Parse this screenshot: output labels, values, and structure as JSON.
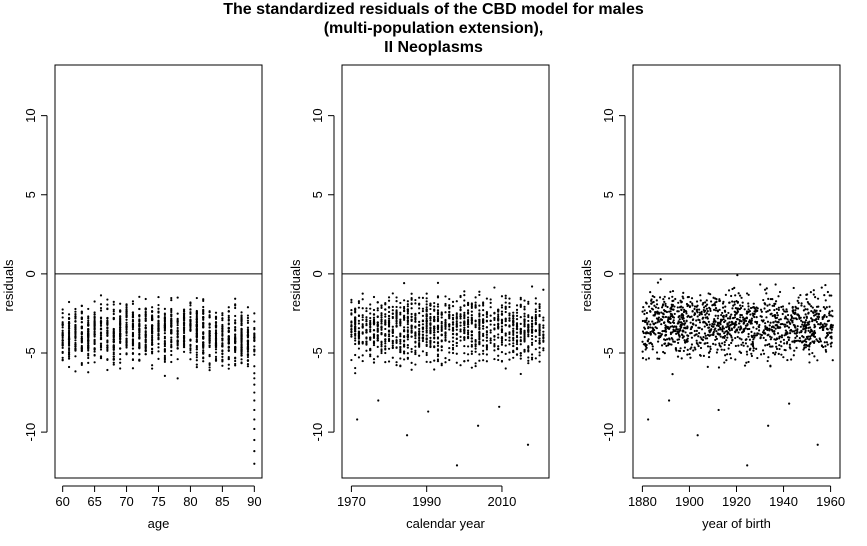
{
  "title_lines": [
    "The standardized residuals of the CBD model for males",
    "(multi-population extension),",
    "II Neoplasms"
  ],
  "chart_data": [
    {
      "type": "scatter",
      "xlabel": "age",
      "ylabel": "residuals",
      "xlim": [
        58.8,
        91.2
      ],
      "ylim": [
        -12.9,
        13.2
      ],
      "xticks": [
        60,
        65,
        70,
        75,
        80,
        85,
        90
      ],
      "yticks": [
        -10,
        -5,
        0,
        5,
        10
      ],
      "hline": 0,
      "x_range": [
        60,
        90
      ],
      "y_center": -3.6,
      "y_spread": 1.3,
      "extreme_y": [
        -12.0,
        -11.2,
        -10.5,
        -9.8,
        -9.2,
        -8.6,
        -8.0,
        -7.5,
        -7.0,
        -6.6
      ]
    },
    {
      "type": "scatter",
      "xlabel": "calendar year",
      "ylabel": "residuals",
      "xlim": [
        1967.5,
        2022.5
      ],
      "ylim": [
        -12.9,
        13.2
      ],
      "xticks": [
        1970,
        1990,
        2010
      ],
      "yticks": [
        -10,
        -5,
        0,
        5,
        10
      ],
      "hline": 0,
      "x_range": [
        1970,
        2021
      ],
      "y_center": -3.4,
      "y_spread": 1.4,
      "extreme_y": [
        -12.1,
        -10.8,
        -10.2,
        -9.6,
        -9.2,
        -8.7,
        -8.4,
        -8.0
      ]
    },
    {
      "type": "scatter",
      "xlabel": "year of birth",
      "ylabel": "residuals",
      "xlim": [
        1876,
        1964
      ],
      "ylim": [
        -12.9,
        13.2
      ],
      "xticks": [
        1880,
        1900,
        1920,
        1940,
        1960
      ],
      "yticks": [
        -10,
        -5,
        0,
        5,
        10
      ],
      "hline": 0,
      "x_range": [
        1880,
        1961
      ],
      "y_center": -3.2,
      "y_spread": 1.4,
      "extreme_y": [
        -12.1,
        -10.8,
        -10.2,
        -9.6,
        -9.2,
        -8.6,
        -8.2,
        -8.0
      ]
    }
  ]
}
